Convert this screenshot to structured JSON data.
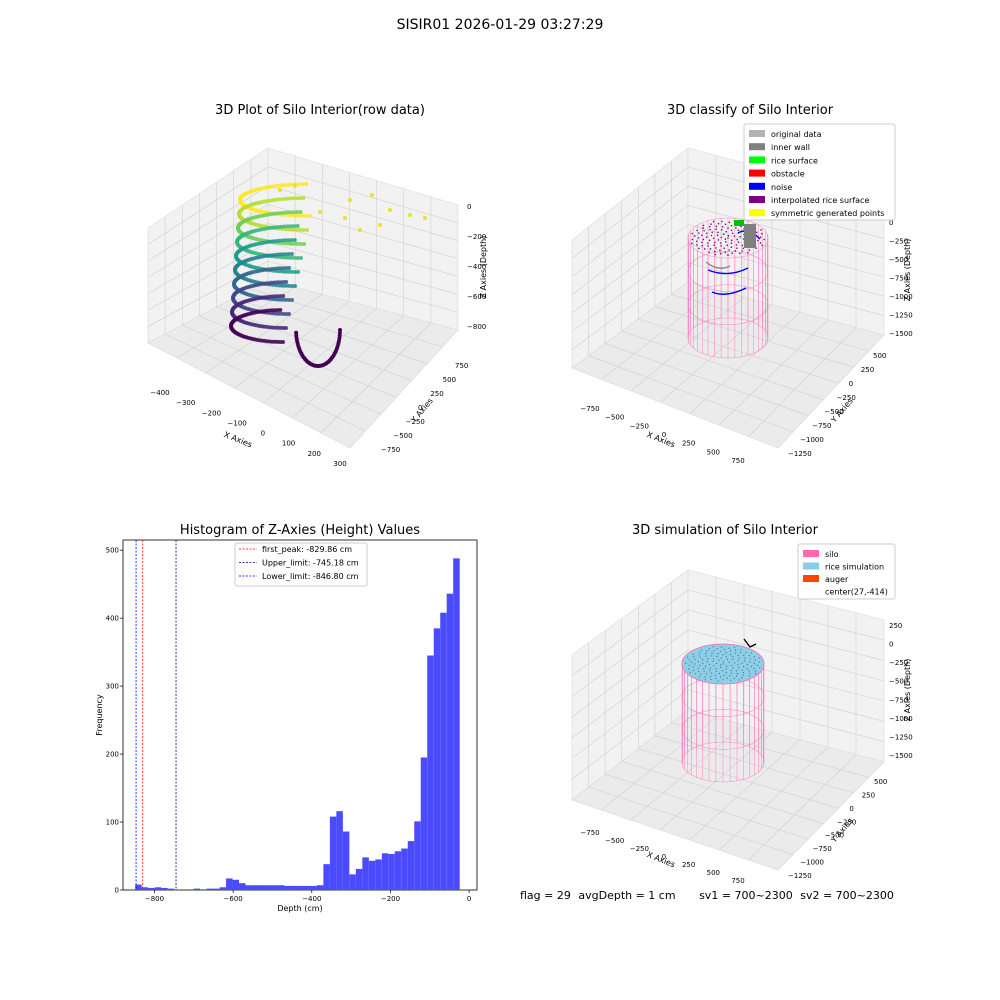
{
  "suptitle": "SISIR01 2026-01-29 03:27:29",
  "plot1": {
    "title": "3D Plot of Silo Interior(row data)",
    "xlabel": "X Axies",
    "ylabel": "Y Axies",
    "zlabel": "Z Axies (Depth)",
    "xticks": [
      "−400",
      "−300",
      "−200",
      "−100",
      "0",
      "100",
      "200",
      "300"
    ],
    "yticks": [
      "750",
      "500",
      "250",
      "0",
      "−250",
      "−500",
      "−750"
    ],
    "zticks": [
      "0",
      "−200",
      "−400",
      "−600",
      "−800"
    ]
  },
  "plot2": {
    "title": "3D classify of Silo Interior",
    "xlabel": "X Axies",
    "ylabel": "Y Axies",
    "zlabel": "Z Axies (Depth)",
    "xticks": [
      "−750",
      "−500",
      "−250",
      "0",
      "250",
      "500",
      "750"
    ],
    "yticks": [
      "500",
      "250",
      "0",
      "−250",
      "−500",
      "−750",
      "−1000",
      "−1250"
    ],
    "zticks": [
      "0",
      "−250",
      "−500",
      "−750",
      "−1000",
      "−1250",
      "−1500"
    ],
    "legend": [
      {
        "label": "original data",
        "color": "#b3b3b3"
      },
      {
        "label": "inner wall",
        "color": "#808080"
      },
      {
        "label": "rice surface",
        "color": "#00ff00"
      },
      {
        "label": "obstacle",
        "color": "#ff0000"
      },
      {
        "label": "noise",
        "color": "#0000ff"
      },
      {
        "label": "interpolated rice surface",
        "color": "#800080"
      },
      {
        "label": "symmetric generated points",
        "color": "#ffff00"
      }
    ]
  },
  "chart_data": {
    "type": "bar",
    "title": "Histogram of Z-Axies (Height) Values",
    "xlabel": "Depth (cm)",
    "ylabel": "Frequency",
    "xlim": [
      -880,
      20
    ],
    "ylim": [
      0,
      515
    ],
    "xticks": [
      -800,
      -600,
      -400,
      -200,
      0
    ],
    "yticks": [
      0,
      100,
      200,
      300,
      400,
      500
    ],
    "bin_width": 16.5,
    "bin_start": -849,
    "values": [
      8,
      4,
      3,
      4,
      3,
      2,
      0,
      0,
      0,
      2,
      1,
      2,
      2,
      4,
      17,
      15,
      10,
      7,
      7,
      7,
      7,
      7,
      7,
      6,
      6,
      6,
      6,
      6,
      7,
      38,
      108,
      116,
      86,
      23,
      31,
      48,
      43,
      45,
      54,
      53,
      57,
      61,
      72,
      101,
      195,
      345,
      385,
      408,
      436,
      488
    ],
    "bar_color": "#4a4aff",
    "vlines": [
      {
        "label": "first_peak: -829.86 cm",
        "x": -829.86,
        "color": "#ff0000"
      },
      {
        "label": "Upper_limit: -745.18 cm",
        "x": -745.18,
        "color": "#00008b"
      },
      {
        "label": "Lower_limit: -846.80 cm",
        "x": -846.8,
        "color": "#0000ff"
      }
    ]
  },
  "plot4": {
    "title": "3D simulation of Silo Interior",
    "xlabel": "X Axies",
    "ylabel": "Y Axies",
    "zlabel": "Z Axies (Depth)",
    "xticks": [
      "−750",
      "−500",
      "−250",
      "0",
      "250",
      "500",
      "750"
    ],
    "yticks": [
      "500",
      "250",
      "0",
      "−250",
      "−500",
      "−750",
      "−1000",
      "−1250"
    ],
    "zticks": [
      "250",
      "0",
      "−250",
      "−500",
      "−750",
      "−1000",
      "−1250",
      "−1500"
    ],
    "legend": [
      {
        "label": "silo",
        "color": "#ff69b4"
      },
      {
        "label": "rice simulation",
        "color": "#87ceeb"
      },
      {
        "label": "auger",
        "color": "#ff4500"
      },
      {
        "label": "center(27,-414)",
        "color": ""
      }
    ]
  },
  "footer": {
    "flag": "flag = 29",
    "avg": "avgDepth = 1 cm",
    "sv1": "sv1 = 700~2300",
    "sv2": "sv2 = 700~2300"
  }
}
